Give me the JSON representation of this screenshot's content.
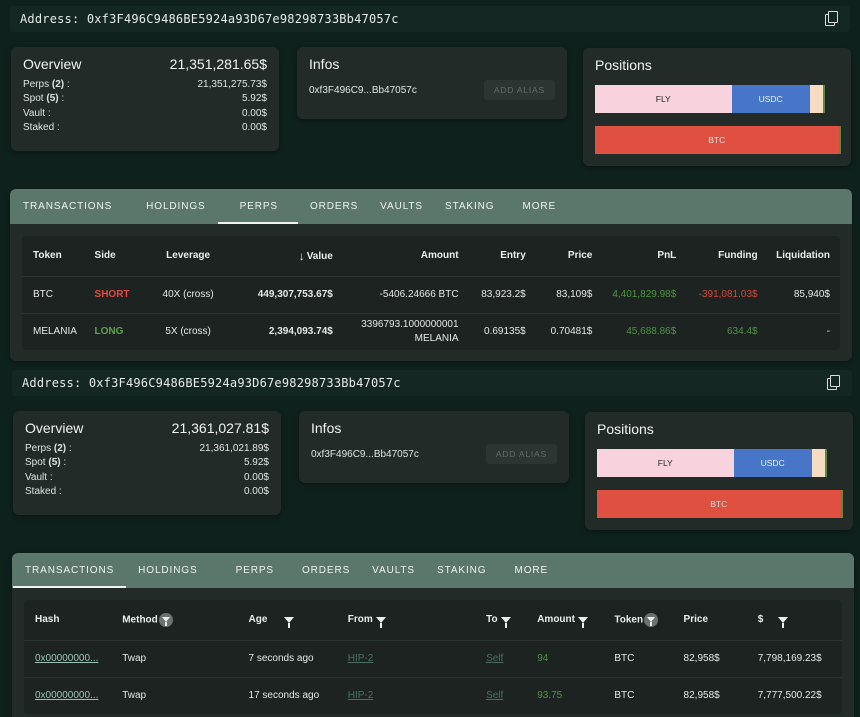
{
  "blocks": [
    {
      "address_label": "Address: 0xf3F496C9486BE5924a93D67e98298733Bb47057c",
      "overview": {
        "title": "Overview",
        "total": "21,351,281.65$",
        "rows": [
          {
            "label": "Perps",
            "count": "(2)",
            "suffix": " :",
            "value": "21,351,275.73$"
          },
          {
            "label": "Spot",
            "count": "(5)",
            "suffix": " :",
            "value": "5.92$"
          },
          {
            "label": "Vault :",
            "count": "",
            "suffix": "",
            "value": "0.00$"
          },
          {
            "label": "Staked :",
            "count": "",
            "suffix": "",
            "value": "0.00$"
          }
        ]
      },
      "infos": {
        "title": "Infos",
        "short_address": "0xf3F496C9...Bb47057c",
        "alias_button": "ADD ALIAS"
      },
      "positions": {
        "title": "Positions",
        "bar1": [
          {
            "label": "FLY",
            "share": 0.555,
            "color": "#f8d3dd"
          },
          {
            "label": "USDC",
            "share": 0.318,
            "color": "#4776c8"
          },
          {
            "label": "",
            "share": 0.055,
            "color": "#f6dcc0"
          }
        ],
        "bar2": [
          {
            "label": "BTC",
            "share": 0.99,
            "color": "#e05040"
          }
        ]
      }
    },
    {
      "address_label": "Address: 0xf3F496C9486BE5924a93D67e98298733Bb47057c",
      "overview": {
        "title": "Overview",
        "total": "21,361,027.81$",
        "rows": [
          {
            "label": "Perps",
            "count": "(2)",
            "suffix": " :",
            "value": "21,361,021.89$"
          },
          {
            "label": "Spot",
            "count": "(5)",
            "suffix": " :",
            "value": "5.92$"
          },
          {
            "label": "Vault :",
            "count": "",
            "suffix": "",
            "value": "0.00$"
          },
          {
            "label": "Staked :",
            "count": "",
            "suffix": "",
            "value": "0.00$"
          }
        ]
      },
      "infos": {
        "title": "Infos",
        "short_address": "0xf3F496C9...Bb47057c",
        "alias_button": "ADD ALIAS"
      },
      "positions": {
        "title": "Positions",
        "bar1": [
          {
            "label": "FLY",
            "share": 0.555,
            "color": "#f8d3dd"
          },
          {
            "label": "USDC",
            "share": 0.318,
            "color": "#4776c8"
          },
          {
            "label": "",
            "share": 0.055,
            "color": "#f6dcc0"
          }
        ],
        "bar2": [
          {
            "label": "BTC",
            "share": 0.99,
            "color": "#e05040"
          }
        ]
      }
    }
  ],
  "tabs": [
    "TRANSACTIONS",
    "HOLDINGS",
    "PERPS",
    "ORDERS",
    "VAULTS",
    "STAKING",
    "MORE"
  ],
  "perps_table": {
    "headers": {
      "token": "Token",
      "side": "Side",
      "leverage": "Leverage",
      "value": "Value",
      "amount": "Amount",
      "entry": "Entry",
      "price": "Price",
      "pnl": "PnL",
      "funding": "Funding",
      "liquidation": "Liquidation"
    },
    "rows": [
      {
        "token": "BTC",
        "side": "SHORT",
        "leverage": "40X (cross)",
        "value": "449,307,753.67$",
        "amount": "-5406.24666 BTC",
        "entry": "83,923.2$",
        "price": "83,109$",
        "pnl": "4,401,829.98$",
        "funding": "-391,081.03$",
        "liquidation": "85,940$"
      },
      {
        "token": "MELANIA",
        "side": "LONG",
        "leverage": "5X (cross)",
        "value": "2,394,093.74$",
        "amount_line1": "3396793.1000000001",
        "amount_line2": "MELANIA",
        "entry": "0.69135$",
        "price": "0.70481$",
        "pnl": "45,688.86$",
        "funding": "634.4$",
        "liquidation": "-"
      }
    ]
  },
  "tx_table": {
    "headers": {
      "hash": "Hash",
      "method": "Method",
      "age": "Age",
      "from": "From",
      "to": "To",
      "amount": "Amount",
      "token": "Token",
      "price": "Price",
      "usd": "$"
    },
    "rows": [
      {
        "hash": "0x00000000...",
        "method": "Twap",
        "age": "7 seconds ago",
        "from": "HIP-2",
        "to": "Self",
        "amount": "94",
        "token": "BTC",
        "price": "82,958$",
        "usd": "7,798,169.23$"
      },
      {
        "hash": "0x00000000...",
        "method": "Twap",
        "age": "17 seconds ago",
        "from": "HIP-2",
        "to": "Self",
        "amount": "93.75",
        "token": "BTC",
        "price": "82,958$",
        "usd": "7,777,500.22$"
      }
    ]
  }
}
